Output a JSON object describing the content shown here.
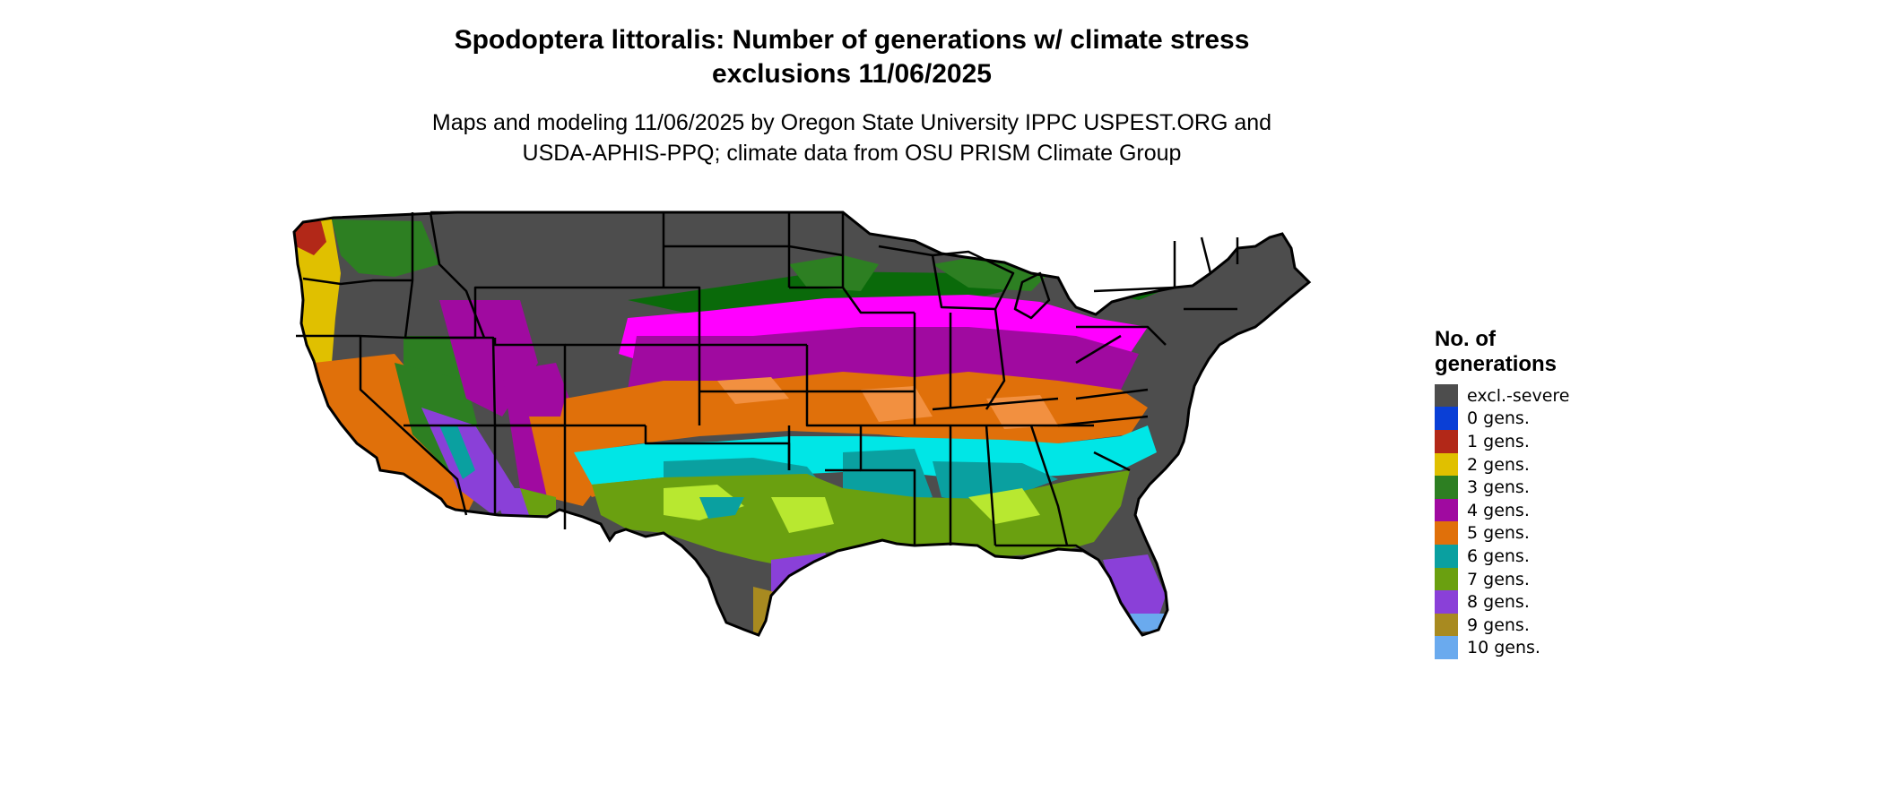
{
  "title": {
    "line1": "Spodoptera littoralis: Number of generations w/ climate stress",
    "line2": "exclusions 11/06/2025"
  },
  "subtitle": {
    "line1": "Maps and modeling 11/06/2025 by Oregon State University IPPC USPEST.ORG and",
    "line2": "USDA-APHIS-PPQ; climate data from OSU PRISM Climate Group"
  },
  "legend": {
    "title_line1": "No. of",
    "title_line2": "generations",
    "items": [
      {
        "label": "excl.-severe",
        "color": "#4d4d4d"
      },
      {
        "label": "0 gens.",
        "color": "#0a3fd6"
      },
      {
        "label": "1 gens.",
        "color": "#b22818"
      },
      {
        "label": "2 gens.",
        "color": "#e0c000"
      },
      {
        "label": "3 gens.",
        "color": "#2d7f22"
      },
      {
        "label": "4 gens.",
        "color": "#a00aa0"
      },
      {
        "label": "5 gens.",
        "color": "#e0700a"
      },
      {
        "label": "6 gens.",
        "color": "#0aa0a0"
      },
      {
        "label": "7 gens.",
        "color": "#6aa010"
      },
      {
        "label": "8 gens.",
        "color": "#8a40d8"
      },
      {
        "label": "9 gens.",
        "color": "#a88a20"
      },
      {
        "label": "10 gens.",
        "color": "#6aaaee"
      }
    ]
  },
  "map": {
    "region": "Continental United States",
    "state_border_color": "#000000",
    "band_colors": {
      "excluded": "#4d4d4d",
      "gen3_dark": "#0a6a0a",
      "gen4_light": "#ff00ff",
      "gen5_light": "#f29040",
      "gen6_light": "#00e6e6",
      "gen7_light": "#b8e830"
    }
  }
}
